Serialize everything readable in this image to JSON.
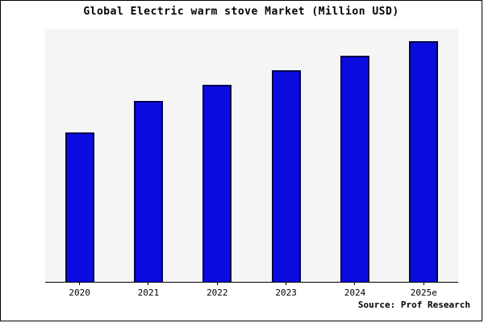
{
  "title": "Global Electric warm stove Market (Million USD)",
  "source_note": "Source: Prof Research",
  "colors": {
    "bar_fill": "#0b0be0",
    "bar_edge": "#00004d",
    "plot_background": "#f5f5f5",
    "frame_border": "#000000"
  },
  "chart_data": {
    "type": "bar",
    "title": "Global Electric warm stove Market (Million USD)",
    "categories": [
      "2020",
      "2021",
      "2022",
      "2023",
      "2024",
      "2025e"
    ],
    "values": [
      62,
      75,
      82,
      88,
      94,
      100
    ],
    "xlabel": "",
    "ylabel": "",
    "ylim": [
      0,
      105
    ],
    "grid": false,
    "legend": false,
    "y_axis_labels_visible": false,
    "annotation": "Source: Prof Research"
  }
}
